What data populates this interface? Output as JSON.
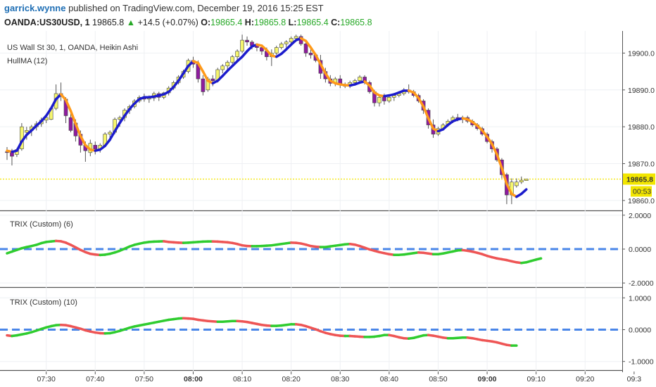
{
  "header": {
    "user": "garrick.wynne",
    "published_text": "published on TradingView.com, December 19, 2016 15:25 EST",
    "symbol": "OANDA:US30USD, 1",
    "last": "19865.8",
    "change_arrow": "▲",
    "change": "+14.5 (+0.07%)",
    "o_label": "O:",
    "o": "19865.4",
    "h_label": "H:",
    "h": "19865.8",
    "l_label": "L:",
    "l": "19865.4",
    "c_label": "C:",
    "c": "19865.8"
  },
  "colors": {
    "up_candle": "#f5f56e",
    "down_candle": "#8e1b9e",
    "hull_up": "#1c1ccc",
    "hull_down": "#ff9a1a",
    "trix_up": "#2fcc2f",
    "trix_down": "#ee5555",
    "zero_line": "#4a86e8",
    "price_line": "#f2e600"
  },
  "chart_data": [
    {
      "type": "candlestick",
      "title": "US Wall St 30, 1, OANDA, Heikin Ashi",
      "indicator": "HullMA (12)",
      "x_ticks": [
        "07:30",
        "07:40",
        "07:50",
        "08:00",
        "08:10",
        "08:20",
        "08:30",
        "08:40",
        "08:50",
        "09:00",
        "09:10",
        "09:20",
        "09:3"
      ],
      "bold_ticks": [
        "08:00",
        "09:00"
      ],
      "y_ticks": [
        "19900.0",
        "19890.0",
        "19880.0",
        "19870.0",
        "19860.0"
      ],
      "ylim": [
        19857.5,
        19906
      ],
      "last_price": "19865.8",
      "countdown": "00:53",
      "time_start": "07:22",
      "time_step_min": 1,
      "candles": [
        [
          19873.2,
          19874.5,
          19871.0,
          19873.0
        ],
        [
          19873.0,
          19874.0,
          19869.5,
          19872.0
        ],
        [
          19872.5,
          19874.2,
          19871.8,
          19873.8
        ],
        [
          19874.0,
          19881.0,
          19873.5,
          19880.0
        ],
        [
          19878.5,
          19880.0,
          19876.5,
          19879.0
        ],
        [
          19879.0,
          19880.5,
          19877.5,
          19880.0
        ],
        [
          19880.0,
          19881.5,
          19879.0,
          19880.8
        ],
        [
          19880.8,
          19882.5,
          19880.0,
          19881.8
        ],
        [
          19881.8,
          19883.0,
          19881.0,
          19882.5
        ],
        [
          19882.0,
          19885.5,
          19881.8,
          19885.0
        ],
        [
          19885.0,
          19891.5,
          19884.5,
          19889.0
        ],
        [
          19889.0,
          19892.0,
          19887.0,
          19888.5
        ],
        [
          19887.5,
          19888.0,
          19881.0,
          19883.0
        ],
        [
          19882.5,
          19884.0,
          19878.5,
          19879.0
        ],
        [
          19881.0,
          19882.0,
          19876.0,
          19877.5
        ],
        [
          19878.0,
          19879.0,
          19873.0,
          19875.0
        ],
        [
          19875.0,
          19876.0,
          19870.5,
          19873.5
        ],
        [
          19873.0,
          19876.5,
          19872.0,
          19875.5
        ],
        [
          19875.0,
          19876.0,
          19872.5,
          19874.0
        ],
        [
          19874.0,
          19875.5,
          19873.0,
          19875.0
        ],
        [
          19875.0,
          19878.5,
          19874.5,
          19878.0
        ],
        [
          19878.0,
          19879.0,
          19876.0,
          19878.5
        ],
        [
          19878.5,
          19882.5,
          19878.0,
          19882.0
        ],
        [
          19882.0,
          19883.0,
          19880.0,
          19882.5
        ],
        [
          19882.5,
          19885.0,
          19881.5,
          19884.5
        ],
        [
          19884.5,
          19886.0,
          19883.5,
          19885.5
        ],
        [
          19885.5,
          19887.5,
          19885.0,
          19887.0
        ],
        [
          19887.0,
          19888.5,
          19886.5,
          19888.0
        ],
        [
          19888.0,
          19889.0,
          19886.8,
          19887.5
        ],
        [
          19887.5,
          19888.5,
          19886.5,
          19887.8
        ],
        [
          19887.8,
          19889.5,
          19887.0,
          19889.0
        ],
        [
          19889.0,
          19889.5,
          19887.0,
          19888.0
        ],
        [
          19888.0,
          19889.5,
          19887.5,
          19889.2
        ],
        [
          19889.2,
          19891.0,
          19888.5,
          19890.5
        ],
        [
          19890.5,
          19892.5,
          19890.0,
          19892.0
        ],
        [
          19892.0,
          19894.0,
          19891.5,
          19893.5
        ],
        [
          19893.5,
          19895.5,
          19893.0,
          19895.0
        ],
        [
          19895.0,
          19898.5,
          19894.5,
          19898.0
        ],
        [
          19898.0,
          19899.0,
          19896.0,
          19897.0
        ],
        [
          19897.0,
          19898.0,
          19892.0,
          19893.0
        ],
        [
          19893.0,
          19894.0,
          19888.5,
          19889.5
        ],
        [
          19890.0,
          19893.5,
          19889.5,
          19893.0
        ],
        [
          19893.0,
          19894.0,
          19891.0,
          19892.5
        ],
        [
          19892.5,
          19896.0,
          19892.0,
          19895.5
        ],
        [
          19895.5,
          19897.0,
          19894.5,
          19896.5
        ],
        [
          19896.5,
          19898.0,
          19895.5,
          19897.5
        ],
        [
          19897.5,
          19899.5,
          19897.0,
          19899.0
        ],
        [
          19899.0,
          19901.0,
          19898.0,
          19900.5
        ],
        [
          19900.5,
          19905.0,
          19900.0,
          19903.5
        ],
        [
          19903.5,
          19904.5,
          19902.0,
          19903.0
        ],
        [
          19903.0,
          19903.5,
          19901.0,
          19902.0
        ],
        [
          19902.0,
          19902.5,
          19900.5,
          19901.5
        ],
        [
          19901.5,
          19902.0,
          19899.5,
          19900.5
        ],
        [
          19900.5,
          19901.5,
          19898.0,
          19899.0
        ],
        [
          19899.0,
          19901.0,
          19896.5,
          19900.0
        ],
        [
          19900.0,
          19902.0,
          19899.5,
          19901.5
        ],
        [
          19901.5,
          19903.0,
          19901.0,
          19902.5
        ],
        [
          19902.5,
          19903.5,
          19901.5,
          19903.0
        ],
        [
          19903.0,
          19904.5,
          19902.0,
          19904.0
        ],
        [
          19904.0,
          19905.0,
          19903.5,
          19904.5
        ],
        [
          19904.5,
          19905.0,
          19902.0,
          19902.5
        ],
        [
          19902.5,
          19903.0,
          19899.0,
          19900.0
        ],
        [
          19900.0,
          19901.5,
          19898.5,
          19899.5
        ],
        [
          19899.5,
          19900.0,
          19897.5,
          19898.0
        ],
        [
          19898.0,
          19899.5,
          19893.0,
          19894.5
        ],
        [
          19895.0,
          19896.0,
          19892.0,
          19893.0
        ],
        [
          19893.0,
          19894.0,
          19891.0,
          19891.8
        ],
        [
          19891.8,
          19893.5,
          19891.0,
          19893.0
        ],
        [
          19893.0,
          19894.0,
          19890.5,
          19891.5
        ],
        [
          19891.5,
          19892.0,
          19890.5,
          19891.0
        ],
        [
          19891.0,
          19892.5,
          19890.5,
          19892.0
        ],
        [
          19892.0,
          19893.0,
          19891.5,
          19892.5
        ],
        [
          19892.5,
          19894.0,
          19892.0,
          19893.5
        ],
        [
          19893.5,
          19894.0,
          19891.5,
          19892.0
        ],
        [
          19892.0,
          19892.5,
          19889.0,
          19889.5
        ],
        [
          19889.5,
          19890.0,
          19885.5,
          19886.5
        ],
        [
          19886.5,
          19888.5,
          19885.5,
          19888.0
        ],
        [
          19888.0,
          19889.0,
          19886.0,
          19887.0
        ],
        [
          19887.0,
          19888.5,
          19886.5,
          19888.0
        ],
        [
          19888.0,
          19889.0,
          19887.0,
          19888.5
        ],
        [
          19888.5,
          19889.5,
          19888.0,
          19889.0
        ],
        [
          19889.0,
          19890.5,
          19888.5,
          19890.0
        ],
        [
          19890.0,
          19891.5,
          19889.0,
          19889.5
        ],
        [
          19889.5,
          19890.0,
          19888.0,
          19888.5
        ],
        [
          19888.5,
          19889.0,
          19886.5,
          19887.0
        ],
        [
          19887.0,
          19887.5,
          19883.5,
          19884.5
        ],
        [
          19884.5,
          19885.0,
          19879.5,
          19880.5
        ],
        [
          19880.5,
          19882.0,
          19877.0,
          19878.0
        ],
        [
          19878.0,
          19880.0,
          19877.5,
          19879.5
        ],
        [
          19879.5,
          19881.0,
          19879.0,
          19880.5
        ],
        [
          19880.5,
          19882.0,
          19880.0,
          19881.5
        ],
        [
          19881.5,
          19883.0,
          19881.0,
          19882.5
        ],
        [
          19882.5,
          19883.5,
          19881.5,
          19882.0
        ],
        [
          19882.0,
          19883.0,
          19881.0,
          19882.5
        ],
        [
          19882.5,
          19883.0,
          19881.0,
          19881.5
        ],
        [
          19881.5,
          19882.0,
          19880.0,
          19880.5
        ],
        [
          19880.5,
          19881.0,
          19879.0,
          19879.5
        ],
        [
          19879.5,
          19880.0,
          19877.5,
          19878.0
        ],
        [
          19878.0,
          19878.5,
          19875.5,
          19876.0
        ],
        [
          19876.0,
          19876.5,
          19873.0,
          19874.0
        ],
        [
          19874.0,
          19874.5,
          19870.5,
          19871.0
        ],
        [
          19871.0,
          19871.5,
          19866.0,
          19867.0
        ],
        [
          19867.0,
          19867.5,
          19859.0,
          19861.5
        ],
        [
          19861.5,
          19866.0,
          19859.0,
          19865.0
        ],
        [
          19864.0,
          19866.0,
          19863.5,
          19865.0
        ],
        [
          19865.0,
          19866.5,
          19864.5,
          19865.5
        ],
        [
          19865.4,
          19865.8,
          19865.4,
          19865.8
        ]
      ],
      "hull": [
        19873.5,
        19873.2,
        19873.5,
        19876.0,
        19877.8,
        19879.0,
        19880.3,
        19881.5,
        19883.0,
        19885.0,
        19887.5,
        19888.8,
        19887.3,
        19884.3,
        19880.8,
        19877.5,
        19875.0,
        19873.8,
        19873.5,
        19873.8,
        19874.8,
        19876.5,
        19878.8,
        19881.0,
        19883.0,
        19884.8,
        19886.3,
        19887.5,
        19888.0,
        19888.0,
        19888.2,
        19888.5,
        19888.8,
        19889.5,
        19890.8,
        19892.5,
        19894.5,
        19896.5,
        19897.8,
        19897.3,
        19895.0,
        19892.5,
        19891.8,
        19892.5,
        19893.8,
        19895.2,
        19896.5,
        19897.8,
        19899.0,
        19900.5,
        19901.8,
        19902.3,
        19902.0,
        19900.8,
        19899.3,
        19899.0,
        19899.8,
        19901.0,
        19902.3,
        19903.5,
        19904.0,
        19903.3,
        19901.5,
        19899.5,
        19897.0,
        19894.5,
        19892.5,
        19891.8,
        19891.5,
        19891.3,
        19891.2,
        19891.5,
        19892.0,
        19892.3,
        19891.2,
        19889.3,
        19888.5,
        19888.3,
        19888.5,
        19888.8,
        19889.3,
        19889.8,
        19889.8,
        19889.3,
        19887.8,
        19885.5,
        19882.3,
        19879.5,
        19878.8,
        19879.3,
        19880.5,
        19881.5,
        19882.0,
        19882.3,
        19882.0,
        19881.3,
        19880.3,
        19879.0,
        19877.3,
        19875.3,
        19872.5,
        19868.8,
        19864.5,
        19861.8,
        19861.0,
        19861.8,
        19863.0
      ],
      "y_label_last_color": "#f2e600"
    },
    {
      "type": "line",
      "title": "TRIX (Custom) (6)",
      "y_ticks": [
        "2.0000",
        "0.0000",
        "-2.0000"
      ],
      "ylim": [
        -2.2,
        2.2
      ],
      "zero": 0,
      "values": [
        -0.25,
        -0.15,
        -0.05,
        0.05,
        0.12,
        0.18,
        0.25,
        0.35,
        0.42,
        0.45,
        0.48,
        0.46,
        0.38,
        0.25,
        0.1,
        -0.05,
        -0.18,
        -0.28,
        -0.32,
        -0.35,
        -0.33,
        -0.28,
        -0.2,
        -0.1,
        0.02,
        0.15,
        0.25,
        0.32,
        0.38,
        0.42,
        0.44,
        0.45,
        0.46,
        0.42,
        0.4,
        0.38,
        0.37,
        0.38,
        0.4,
        0.42,
        0.44,
        0.45,
        0.45,
        0.44,
        0.42,
        0.4,
        0.36,
        0.3,
        0.22,
        0.18,
        0.17,
        0.17,
        0.18,
        0.2,
        0.22,
        0.26,
        0.3,
        0.34,
        0.38,
        0.37,
        0.33,
        0.26,
        0.18,
        0.14,
        0.12,
        0.12,
        0.16,
        0.2,
        0.24,
        0.28,
        0.3,
        0.26,
        0.18,
        0.08,
        -0.02,
        -0.1,
        -0.18,
        -0.24,
        -0.3,
        -0.34,
        -0.34,
        -0.32,
        -0.28,
        -0.24,
        -0.2,
        -0.22,
        -0.26,
        -0.3,
        -0.3,
        -0.26,
        -0.2,
        -0.14,
        -0.08,
        -0.06,
        -0.1,
        -0.15,
        -0.22,
        -0.3,
        -0.4,
        -0.48,
        -0.55,
        -0.6,
        -0.65,
        -0.72,
        -0.78,
        -0.82,
        -0.78,
        -0.7,
        -0.62,
        -0.55
      ]
    },
    {
      "type": "line",
      "title": "TRIX (Custom) (10)",
      "y_ticks": [
        "1.0000",
        "0.0000",
        "-1.0000"
      ],
      "ylim": [
        -1.25,
        1.25
      ],
      "zero": 0,
      "values": [
        -0.18,
        -0.2,
        -0.18,
        -0.15,
        -0.12,
        -0.08,
        -0.03,
        0.02,
        0.07,
        0.11,
        0.14,
        0.15,
        0.14,
        0.11,
        0.07,
        0.03,
        -0.02,
        -0.06,
        -0.09,
        -0.11,
        -0.12,
        -0.11,
        -0.08,
        -0.04,
        0.01,
        0.06,
        0.1,
        0.13,
        0.16,
        0.19,
        0.22,
        0.25,
        0.28,
        0.31,
        0.33,
        0.35,
        0.36,
        0.35,
        0.34,
        0.31,
        0.29,
        0.27,
        0.26,
        0.25,
        0.25,
        0.26,
        0.27,
        0.27,
        0.26,
        0.24,
        0.21,
        0.18,
        0.15,
        0.13,
        0.12,
        0.12,
        0.13,
        0.15,
        0.17,
        0.17,
        0.15,
        0.11,
        0.06,
        0.01,
        -0.05,
        -0.1,
        -0.14,
        -0.17,
        -0.19,
        -0.2,
        -0.2,
        -0.21,
        -0.22,
        -0.23,
        -0.23,
        -0.22,
        -0.2,
        -0.17,
        -0.17,
        -0.2,
        -0.24,
        -0.27,
        -0.28,
        -0.26,
        -0.22,
        -0.18,
        -0.17,
        -0.19,
        -0.22,
        -0.25,
        -0.27,
        -0.27,
        -0.26,
        -0.25,
        -0.25,
        -0.27,
        -0.3,
        -0.33,
        -0.35,
        -0.37,
        -0.4,
        -0.44,
        -0.48,
        -0.5,
        -0.5
      ]
    }
  ]
}
